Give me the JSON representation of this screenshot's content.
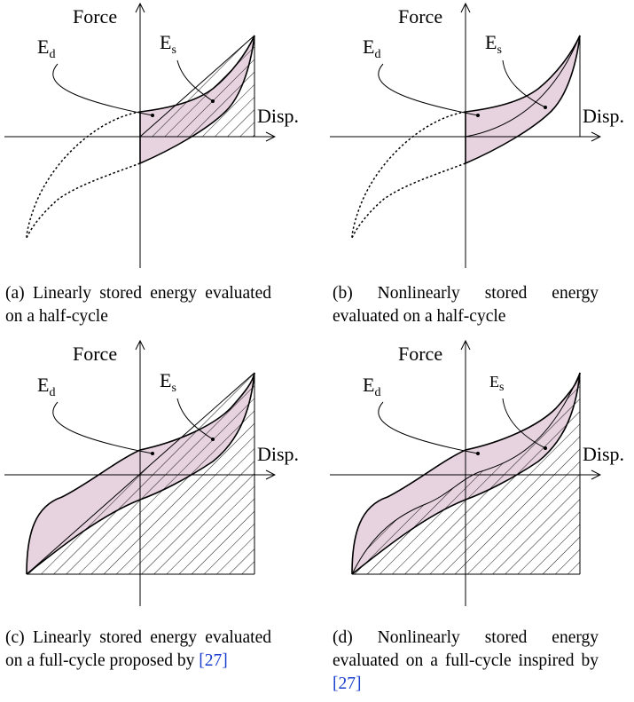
{
  "axis_labels": {
    "force": "Force",
    "disp": "Disp."
  },
  "energy_labels": {
    "dissipated_base": "E",
    "dissipated_sub": "d",
    "stored_base": "E",
    "stored_sub": "s"
  },
  "colors": {
    "dissipated_fill": "#e7d2df",
    "reference_link": "#1a3fcf"
  },
  "panels": [
    {
      "caption": "(a) Linearly stored energy evaluated on a half-cycle"
    },
    {
      "caption": "(b) Nonlinearly stored energy evaluated on a half-cycle"
    },
    {
      "caption_before_ref": "(c) Linearly stored energy evaluated on a full-cycle proposed by ",
      "ref": "[27]"
    },
    {
      "caption_before_ref": "(d) Nonlinearly stored energy evaluated on a full-cycle inspired by ",
      "ref": "[27]"
    }
  ]
}
